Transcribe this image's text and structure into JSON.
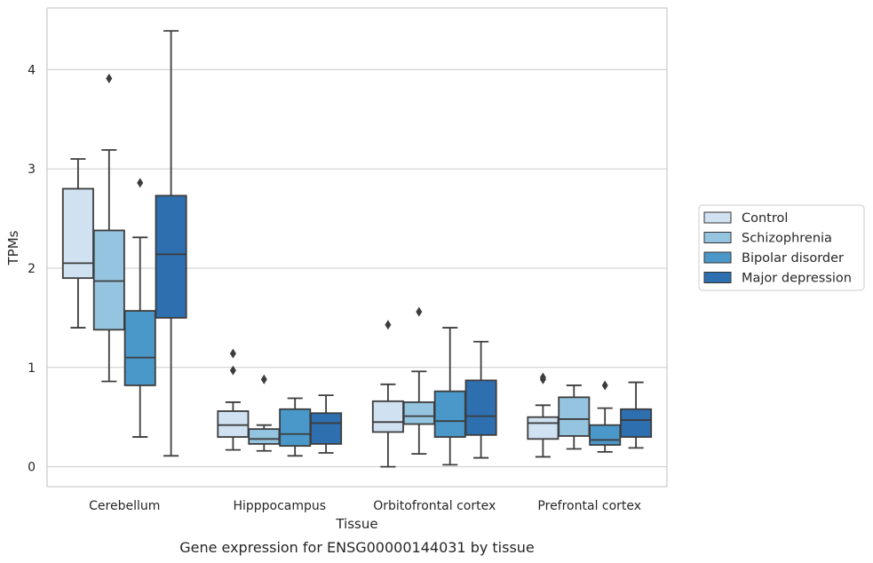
{
  "chart_data": {
    "type": "box",
    "caption": "Gene expression for ENSG00000144031 by tissue",
    "xlabel": "Tissue",
    "ylabel": "TPMs",
    "ylim": [
      -0.2,
      4.62
    ],
    "yticks": [
      0,
      1,
      2,
      3,
      4
    ],
    "grid": "horizontal",
    "legend_position": "right",
    "categories": [
      "Cerebellum",
      "Hipppocampus",
      "Orbitofrontal cortex",
      "Prefrontal cortex"
    ],
    "series": [
      {
        "name": "Control",
        "color": "#d0e1f2",
        "boxes": [
          {
            "whislo": 1.4,
            "q1": 1.9,
            "med": 2.05,
            "q3": 2.8,
            "whishi": 3.1,
            "fliers": []
          },
          {
            "whislo": 0.17,
            "q1": 0.3,
            "med": 0.42,
            "q3": 0.56,
            "whishi": 0.65,
            "fliers": [
              1.14,
              0.97
            ]
          },
          {
            "whislo": 0.0,
            "q1": 0.35,
            "med": 0.45,
            "q3": 0.66,
            "whishi": 0.83,
            "fliers": [
              1.43
            ]
          },
          {
            "whislo": 0.1,
            "q1": 0.28,
            "med": 0.44,
            "q3": 0.5,
            "whishi": 0.62,
            "fliers": [
              0.9,
              0.88
            ]
          }
        ]
      },
      {
        "name": "Schizophrenia",
        "color": "#94c4df",
        "boxes": [
          {
            "whislo": 0.86,
            "q1": 1.38,
            "med": 1.87,
            "q3": 2.38,
            "whishi": 3.19,
            "fliers": [
              3.91
            ]
          },
          {
            "whislo": 0.16,
            "q1": 0.23,
            "med": 0.28,
            "q3": 0.38,
            "whishi": 0.42,
            "fliers": [
              0.88
            ]
          },
          {
            "whislo": 0.13,
            "q1": 0.43,
            "med": 0.51,
            "q3": 0.65,
            "whishi": 0.96,
            "fliers": [
              1.56
            ]
          },
          {
            "whislo": 0.18,
            "q1": 0.31,
            "med": 0.48,
            "q3": 0.7,
            "whishi": 0.82,
            "fliers": []
          }
        ]
      },
      {
        "name": "Bipolar disorder",
        "color": "#4a98c9",
        "boxes": [
          {
            "whislo": 0.3,
            "q1": 0.82,
            "med": 1.1,
            "q3": 1.57,
            "whishi": 2.31,
            "fliers": [
              2.86
            ]
          },
          {
            "whislo": 0.11,
            "q1": 0.21,
            "med": 0.33,
            "q3": 0.58,
            "whishi": 0.69,
            "fliers": []
          },
          {
            "whislo": 0.02,
            "q1": 0.3,
            "med": 0.46,
            "q3": 0.76,
            "whishi": 1.4,
            "fliers": []
          },
          {
            "whislo": 0.15,
            "q1": 0.22,
            "med": 0.27,
            "q3": 0.42,
            "whishi": 0.59,
            "fliers": [
              0.82
            ]
          }
        ]
      },
      {
        "name": "Major depression",
        "color": "#2e6fb0",
        "boxes": [
          {
            "whislo": 0.11,
            "q1": 1.5,
            "med": 2.14,
            "q3": 2.73,
            "whishi": 4.39,
            "fliers": []
          },
          {
            "whislo": 0.14,
            "q1": 0.23,
            "med": 0.44,
            "q3": 0.54,
            "whishi": 0.72,
            "fliers": []
          },
          {
            "whislo": 0.09,
            "q1": 0.32,
            "med": 0.51,
            "q3": 0.87,
            "whishi": 1.26,
            "fliers": []
          },
          {
            "whislo": 0.19,
            "q1": 0.3,
            "med": 0.47,
            "q3": 0.58,
            "whishi": 0.85,
            "fliers": []
          }
        ]
      }
    ]
  }
}
